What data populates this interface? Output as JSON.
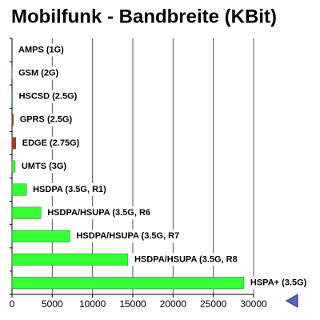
{
  "chart_data": {
    "type": "barh",
    "title": "Mobilfunk - Bandbreite (KBit)",
    "categories": [
      "AMPS (1G)",
      "GSM (2G)",
      "HSCSD (2.5G)",
      "GPRS (2.5G)",
      "EDGE (2.75G)",
      "UMTS (3G)",
      "HSDPA (3.5G, R1)",
      "HSDPA/HSUPA (3.5G, R6",
      "HSDPA/HSUPA (3.5G,  R7",
      "HSDPA/HSUPA (3.5G,  R8",
      "HSPA+ (3.5G)"
    ],
    "values": [
      0,
      9.6,
      57.6,
      171.2,
      473.6,
      384,
      1800,
      3600,
      7200,
      14400,
      28800
    ],
    "colors": [
      "#33ff33",
      "#33ff33",
      "#33ff33",
      "#cc2222",
      "#cc2222",
      "#33ff33",
      "#33ff33",
      "#33ff33",
      "#33ff33",
      "#33ff33",
      "#33ff33"
    ],
    "xlim": [
      0,
      30000
    ],
    "xticks": [
      0,
      5000,
      10000,
      15000,
      20000,
      25000,
      30000
    ],
    "grid": true
  }
}
